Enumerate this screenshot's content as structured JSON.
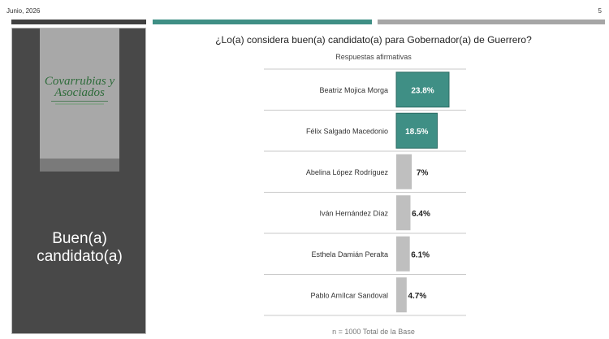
{
  "header": {
    "date": "Junio, 2026",
    "page": "5"
  },
  "logo": {
    "text_line1": "Covarrubias y",
    "text_line2": "Asociados"
  },
  "sidebar": {
    "title_line1": "Buen(a)",
    "title_line2": "candidato(a)"
  },
  "chart_data": {
    "type": "bar",
    "orientation": "horizontal",
    "title": "¿Lo(a) considera buen(a) candidato(a) para Gobernador(a) de Guerrero?",
    "subtitle": "Respuestas afirmativas",
    "categories": [
      "Beatriz Mojica Morga",
      "Félix Salgado Macedonio",
      "Abelina López Rodríguez",
      "Iván Hernández Díaz",
      "Esthela Damián Peralta",
      "Pablo Amílcar Sandoval"
    ],
    "values": [
      23.8,
      18.5,
      7,
      6.4,
      6.1,
      4.7
    ],
    "labels": [
      "23.8%",
      "18.5%",
      "7%",
      "6.4%",
      "6.1%",
      "4.7%"
    ],
    "colors": [
      "#3f8f85",
      "#3f8f85",
      "#bfbfbf",
      "#bfbfbf",
      "#bfbfbf",
      "#bfbfbf"
    ],
    "footnote": "n = 1000 Total de la Base"
  }
}
